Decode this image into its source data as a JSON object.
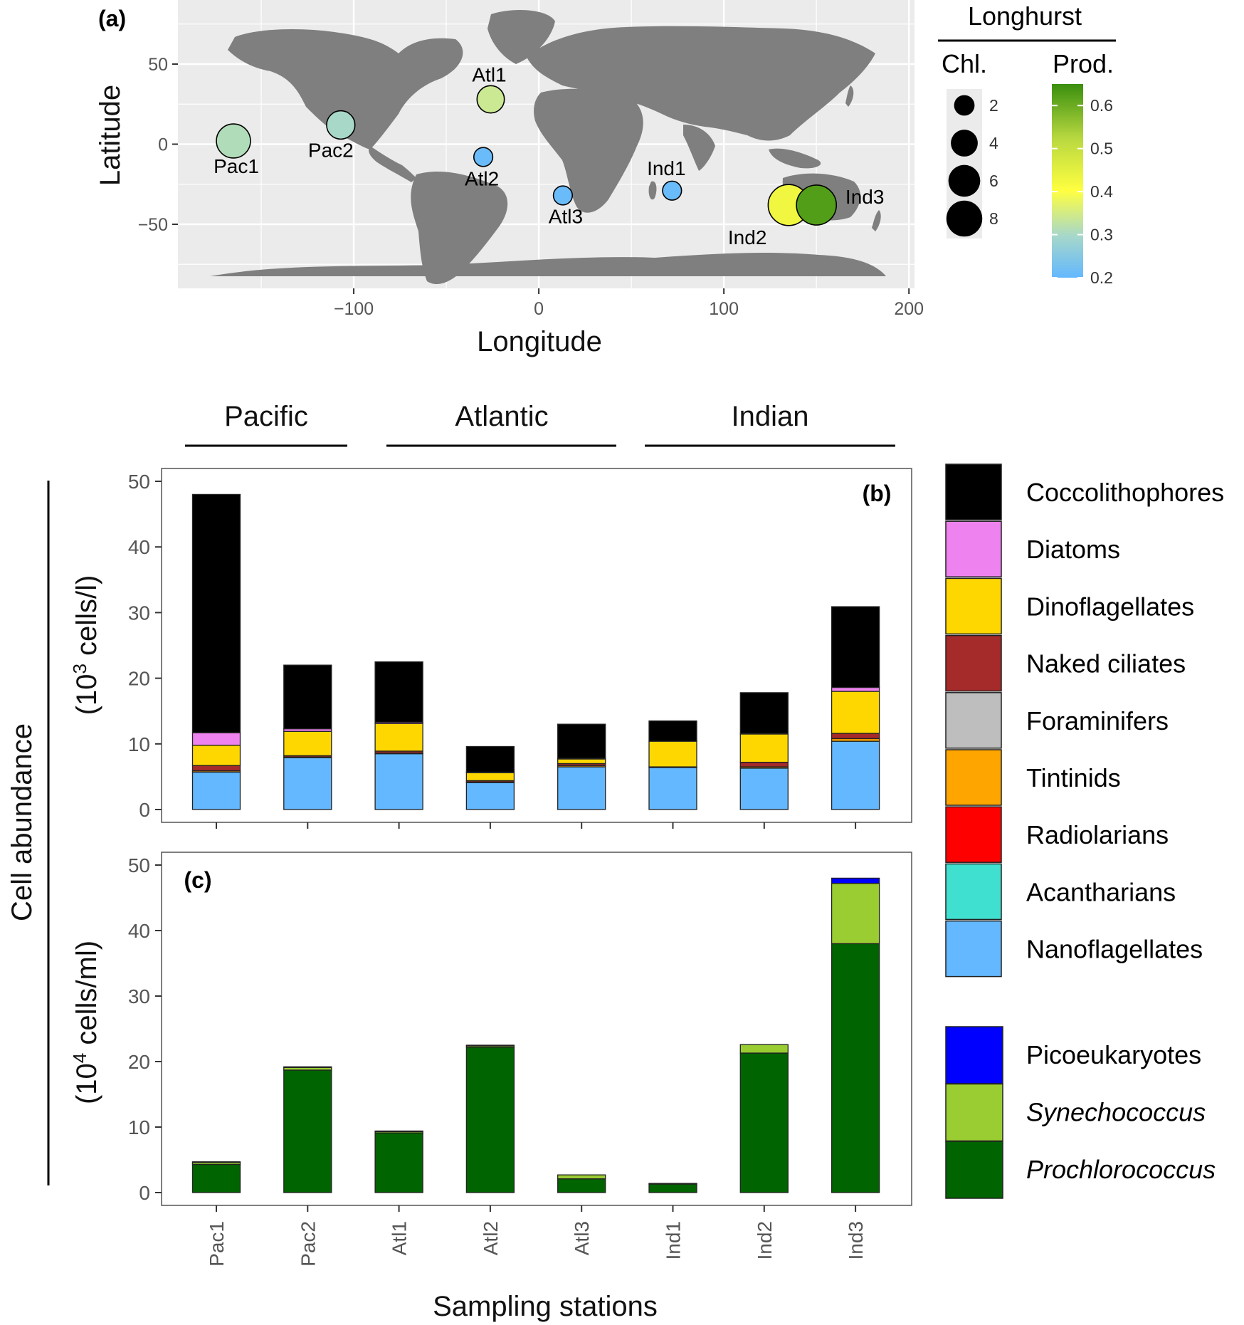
{
  "colors": {
    "Coccolithophores": "#000000",
    "Diatoms": "#ee82ee",
    "Dinoflagellates": "#ffd700",
    "Naked ciliates": "#a52a2a",
    "Foraminifers": "#bebebe",
    "Tintinids": "#ffa500",
    "Radiolarians": "#ff0000",
    "Acantharians": "#40e0d0",
    "Nanoflagellates": "#63b8ff",
    "Picoeukaryotes": "#0000ff",
    "Synechococcus": "#9acd32",
    "Prochlorococcus": "#006400",
    "land": "#7f7f7f",
    "ocean_panel": "#ebebeb",
    "prod_low": "#63b8ff",
    "prod_mid": "#ffff40",
    "prod_high": "#3a8f0e"
  },
  "chart_data": [
    {
      "type": "scatter",
      "panel_label": "(a)",
      "xlabel": "Longitude",
      "ylabel": "Latitude",
      "xlim": [
        -195,
        203
      ],
      "ylim": [
        -90,
        90
      ],
      "xticks": [
        -100,
        0,
        100,
        200
      ],
      "xtick_labels": [
        "−100",
        "0",
        "100",
        "200"
      ],
      "yticks": [
        -50,
        0,
        50
      ],
      "ytick_labels": [
        "−50",
        "0",
        "50"
      ],
      "grid": true,
      "points": [
        {
          "label": "Pac1",
          "lon": -165,
          "lat": 2,
          "chl": 5.5,
          "prod": 0.31
        },
        {
          "label": "Pac2",
          "lon": -107,
          "lat": 12,
          "chl": 3.5,
          "prod": 0.3
        },
        {
          "label": "Atl1",
          "lon": -26,
          "lat": 28,
          "chl": 3.2,
          "prod": 0.34
        },
        {
          "label": "Atl2",
          "lon": -30,
          "lat": -8,
          "chl": 1.2,
          "prod": 0.21
        },
        {
          "label": "Atl3",
          "lon": 13,
          "lat": -32,
          "chl": 1.2,
          "prod": 0.21
        },
        {
          "label": "Ind1",
          "lon": 72,
          "lat": -29,
          "chl": 1.2,
          "prod": 0.21
        },
        {
          "label": "Ind2",
          "lon": 135,
          "lat": -38,
          "chl": 8.5,
          "prod": 0.42
        },
        {
          "label": "Ind3",
          "lon": 150,
          "lat": -38,
          "chl": 8.0,
          "prod": 0.62
        }
      ],
      "legend": {
        "title": "Longhurst",
        "size_title": "Chl.",
        "size_values": [
          2,
          4,
          6,
          8
        ],
        "color_title": "Prod.",
        "color_range": [
          0.2,
          0.65
        ],
        "color_ticks": [
          0.2,
          0.3,
          0.4,
          0.5,
          0.6
        ],
        "color_tick_labels": [
          "0.2",
          "0.3",
          "0.4",
          "0.5",
          "0.6"
        ]
      }
    },
    {
      "type": "bar",
      "stacked": true,
      "panel_label": "(b)",
      "ylabel": "(10³ cells/l)",
      "ylim": [
        0,
        50
      ],
      "yticks": [
        0,
        10,
        20,
        30,
        40,
        50
      ],
      "categories": [
        "Pac1",
        "Pac2",
        "Atl1",
        "Atl2",
        "Atl3",
        "Ind1",
        "Ind2",
        "Ind3"
      ],
      "series": [
        {
          "name": "Nanoflagellates",
          "values": [
            5.7,
            7.9,
            8.5,
            4.1,
            6.5,
            6.4,
            6.3,
            10.4
          ]
        },
        {
          "name": "Acantharians",
          "values": [
            0,
            0,
            0,
            0,
            0,
            0,
            0,
            0
          ]
        },
        {
          "name": "Radiolarians",
          "values": [
            0,
            0,
            0,
            0,
            0,
            0,
            0,
            0
          ]
        },
        {
          "name": "Tintinids",
          "values": [
            0.2,
            0.1,
            0.1,
            0.1,
            0.2,
            0.1,
            0.2,
            0.4
          ]
        },
        {
          "name": "Foraminifers",
          "values": [
            0,
            0,
            0,
            0,
            0,
            0,
            0,
            0
          ]
        },
        {
          "name": "Naked ciliates",
          "values": [
            0.8,
            0.2,
            0.3,
            0.2,
            0.3,
            0,
            0.7,
            0.8
          ]
        },
        {
          "name": "Dinoflagellates",
          "values": [
            3.1,
            3.7,
            4.2,
            1.2,
            0.7,
            3.9,
            4.3,
            6.4
          ]
        },
        {
          "name": "Diatoms",
          "values": [
            1.9,
            0.4,
            0.2,
            0.1,
            0.1,
            0,
            0.1,
            0.6
          ]
        },
        {
          "name": "Coccolithophores",
          "values": [
            36.3,
            9.7,
            9.2,
            3.9,
            5.2,
            3.1,
            6.2,
            12.3
          ]
        }
      ]
    },
    {
      "type": "bar",
      "stacked": true,
      "panel_label": "(c)",
      "ylabel": "(10⁴ cells/ml)",
      "xlabel": "Sampling stations",
      "ylim": [
        0,
        50
      ],
      "yticks": [
        0,
        10,
        20,
        30,
        40,
        50
      ],
      "categories": [
        "Pac1",
        "Pac2",
        "Atl1",
        "Atl2",
        "Atl3",
        "Ind1",
        "Ind2",
        "Ind3"
      ],
      "series": [
        {
          "name": "Prochlorococcus",
          "values": [
            4.3,
            18.7,
            9.1,
            22.2,
            2.1,
            1.3,
            21.3,
            38.0
          ]
        },
        {
          "name": "Synechococcus",
          "values": [
            0.3,
            0.4,
            0.2,
            0.2,
            0.6,
            0.1,
            1.3,
            9.2
          ]
        },
        {
          "name": "Picoeukaryotes",
          "values": [
            0.1,
            0.1,
            0.1,
            0.1,
            0,
            0,
            0,
            0.8
          ]
        }
      ]
    }
  ],
  "ocean_groups": [
    "Pacific",
    "Atlantic",
    "Indian"
  ],
  "shared_ylabel": "Cell abundance",
  "legend_b": [
    "Coccolithophores",
    "Diatoms",
    "Dinoflagellates",
    "Naked ciliates",
    "Foraminifers",
    "Tintinids",
    "Radiolarians",
    "Acantharians",
    "Nanoflagellates"
  ],
  "legend_c": [
    "Picoeukaryotes",
    "Synechococcus",
    "Prochlorococcus"
  ]
}
